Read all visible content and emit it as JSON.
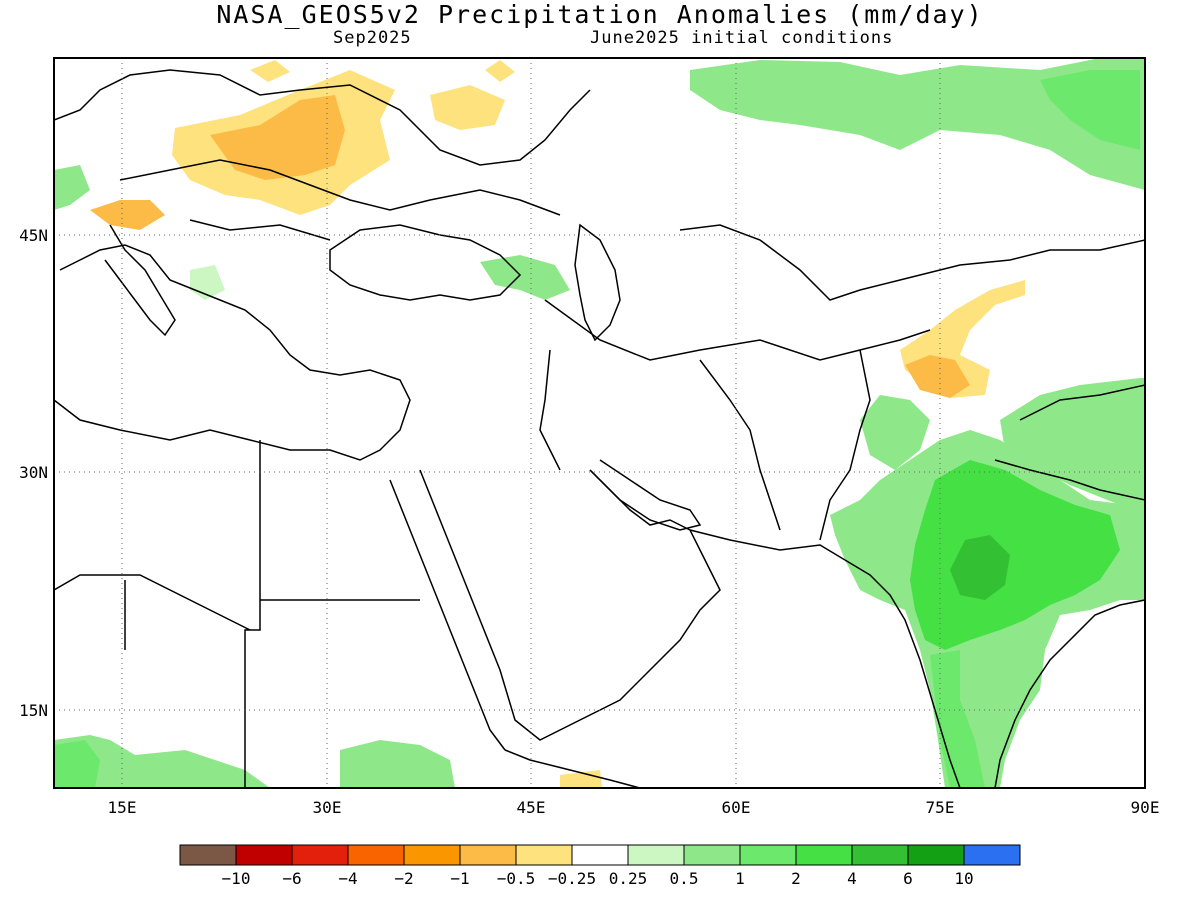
{
  "header": {
    "title": "NASA_GEOS5v2 Precipitation Anomalies (mm/day)",
    "valid_month": "Sep2025",
    "init_conditions": "June2025 initial conditions"
  },
  "map": {
    "region": "Europe, Middle East, Central and South Asia",
    "lon_range": [
      10,
      90
    ],
    "lat_range": [
      10,
      55
    ],
    "lat_ticks": [
      {
        "value": 45,
        "label": "45N"
      },
      {
        "value": 30,
        "label": "30N"
      },
      {
        "value": 15,
        "label": "15N"
      }
    ],
    "lon_ticks": [
      {
        "value": 15,
        "label": "15E"
      },
      {
        "value": 30,
        "label": "30E"
      },
      {
        "value": 45,
        "label": "45E"
      },
      {
        "value": 60,
        "label": "60E"
      },
      {
        "value": 75,
        "label": "75E"
      },
      {
        "value": 90,
        "label": "90E"
      }
    ],
    "gridlines": "dotted"
  },
  "colorbar": {
    "colors": [
      "#7b5846",
      "#c00000",
      "#e3200c",
      "#fa6400",
      "#fa9600",
      "#fbbb46",
      "#fee27e",
      "#ffffff",
      "#ccf7c2",
      "#8ee88a",
      "#6ce86c",
      "#44e044",
      "#33c033",
      "#14a014",
      "#2a70f0"
    ],
    "labels": [
      "−10",
      "−6",
      "−4",
      "−2",
      "−1",
      "−0.5",
      "−0.25",
      "0.25",
      "0.5",
      "1",
      "2",
      "4",
      "6",
      "10"
    ]
  }
}
